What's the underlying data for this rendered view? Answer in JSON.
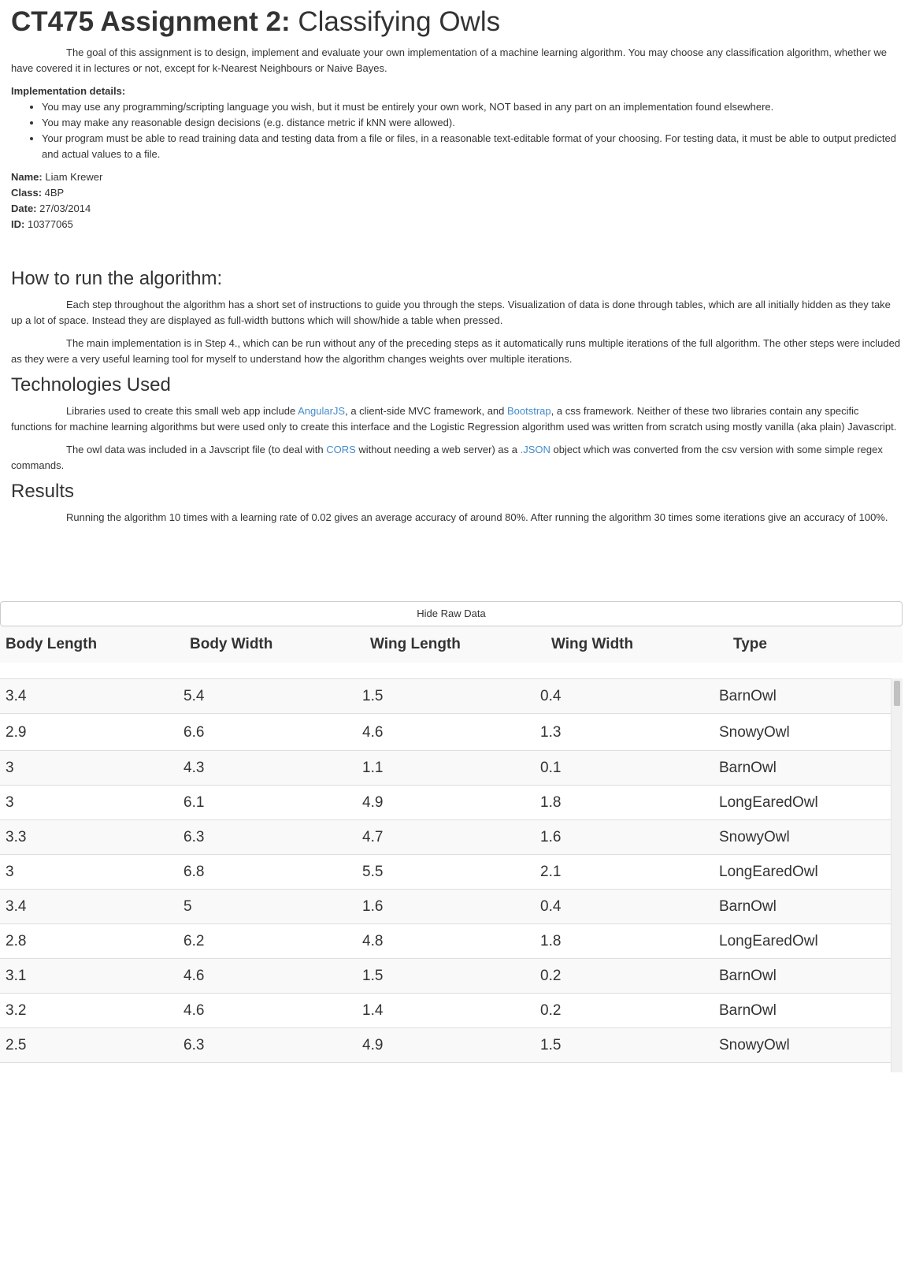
{
  "title": {
    "bold": "CT475 Assignment 2:",
    "rest": "Classifying Owls"
  },
  "intro": "The goal of this assignment is to design, implement and evaluate your own implementation of a machine learning algorithm. You may choose any classification algorithm, whether we have covered it in lectures or not, except for k-Nearest Neighbours or Naive Bayes.",
  "implementation": {
    "heading": "Implementation details:",
    "items": [
      "You may use any programming/scripting language you wish, but it must be entirely your own work, NOT based in any part on an implementation found elsewhere.",
      "You may make any reasonable design decisions (e.g. distance metric if kNN were allowed).",
      "Your program must be able to read training data and testing data from a file or files, in a reasonable text-editable format of your choosing. For testing data, it must be able to output predicted and actual values to a file."
    ]
  },
  "meta": {
    "name_label": "Name:",
    "name": "Liam Krewer",
    "class_label": "Class:",
    "class": "4BP",
    "date_label": "Date:",
    "date": "27/03/2014",
    "id_label": "ID:",
    "id": "10377065"
  },
  "how_to_run": {
    "heading": "How to run the algorithm:",
    "p1": "Each step throughout the algorithm has a short set of instructions to guide you through the steps. Visualization of data is done through tables, which are all initially hidden as they take up a lot of space. Instead they are displayed as full-width buttons which will show/hide a table when pressed.",
    "p2": "The main implementation is in Step 4., which can be run without any of the preceding steps as it automatically runs multiple iterations of the full algorithm. The other steps were included as they were a very useful learning tool for myself to understand how the algorithm changes weights over multiple iterations."
  },
  "technologies": {
    "heading": "Technologies Used",
    "p1_a": "Libraries used to create this small web app include ",
    "link_angular": "AngularJS",
    "p1_b": ", a client-side MVC framework, and ",
    "link_bootstrap": "Bootstrap",
    "p1_c": ", a css framework. Neither of these two libraries contain any specific functions for machine learning algorithms but were used only to create this interface and the Logistic Regression algorithm used was written from scratch using mostly vanilla (aka plain) Javascript.",
    "p2_a": "The owl data was included in a Javscript file (to deal with ",
    "link_cors": "CORS",
    "p2_b": " without needing a web server) as a ",
    "link_json": ".JSON",
    "p2_c": " object which was converted from the csv version with some simple regex commands."
  },
  "results": {
    "heading": "Results",
    "p1": "Running the algorithm 10 times with a learning rate of 0.02 gives an average accuracy of around 80%. After running the algorithm 30 times some iterations give an accuracy of 100%."
  },
  "raw_data": {
    "toggle_label": "Hide Raw Data",
    "columns": [
      "Body Length",
      "Body Width",
      "Wing Length",
      "Wing Width",
      "Type"
    ],
    "rows": [
      [
        "3.4",
        "5.4",
        "1.5",
        "0.4",
        "BarnOwl"
      ],
      [
        "2.9",
        "6.6",
        "4.6",
        "1.3",
        "SnowyOwl"
      ],
      [
        "3",
        "4.3",
        "1.1",
        "0.1",
        "BarnOwl"
      ],
      [
        "3",
        "6.1",
        "4.9",
        "1.8",
        "LongEaredOwl"
      ],
      [
        "3.3",
        "6.3",
        "4.7",
        "1.6",
        "SnowyOwl"
      ],
      [
        "3",
        "6.8",
        "5.5",
        "2.1",
        "LongEaredOwl"
      ],
      [
        "3.4",
        "5",
        "1.6",
        "0.4",
        "BarnOwl"
      ],
      [
        "2.8",
        "6.2",
        "4.8",
        "1.8",
        "LongEaredOwl"
      ],
      [
        "3.1",
        "4.6",
        "1.5",
        "0.2",
        "BarnOwl"
      ],
      [
        "3.2",
        "4.6",
        "1.4",
        "0.2",
        "BarnOwl"
      ],
      [
        "2.5",
        "6.3",
        "4.9",
        "1.5",
        "SnowyOwl"
      ]
    ]
  }
}
